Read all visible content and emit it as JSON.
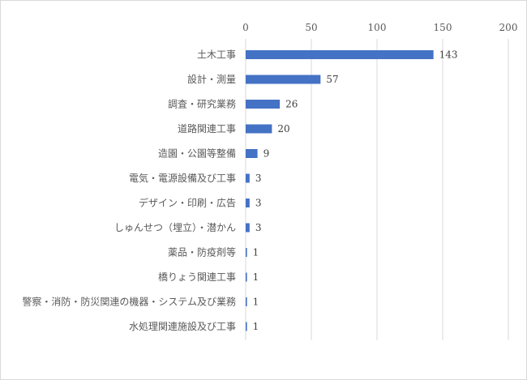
{
  "chart_data": {
    "type": "bar",
    "orientation": "horizontal",
    "categories": [
      "土木工事",
      "設計・測量",
      "調査・研究業務",
      "道路関連工事",
      "造園・公園等整備",
      "電気・電源設備及び工事",
      "デザイン・印刷・広告",
      "しゅんせつ（埋立）・潜かん",
      "薬品・防疫剤等",
      "橋りょう関連工事",
      "警察・消防・防災関連の機器・システム及び業務",
      "水処理関連施設及び工事"
    ],
    "values": [
      143,
      57,
      26,
      20,
      9,
      3,
      3,
      3,
      1,
      1,
      1,
      1
    ],
    "xlim": [
      0,
      200
    ],
    "xticks": [
      "0",
      "50",
      "100",
      "150",
      "200"
    ],
    "tick_values": [
      0,
      50,
      100,
      150,
      200
    ],
    "grid": true,
    "axis_position": "top",
    "bar_color": "#4472c4",
    "grid_color": "#d9d9d9",
    "title": "",
    "xlabel": "",
    "ylabel": ""
  }
}
